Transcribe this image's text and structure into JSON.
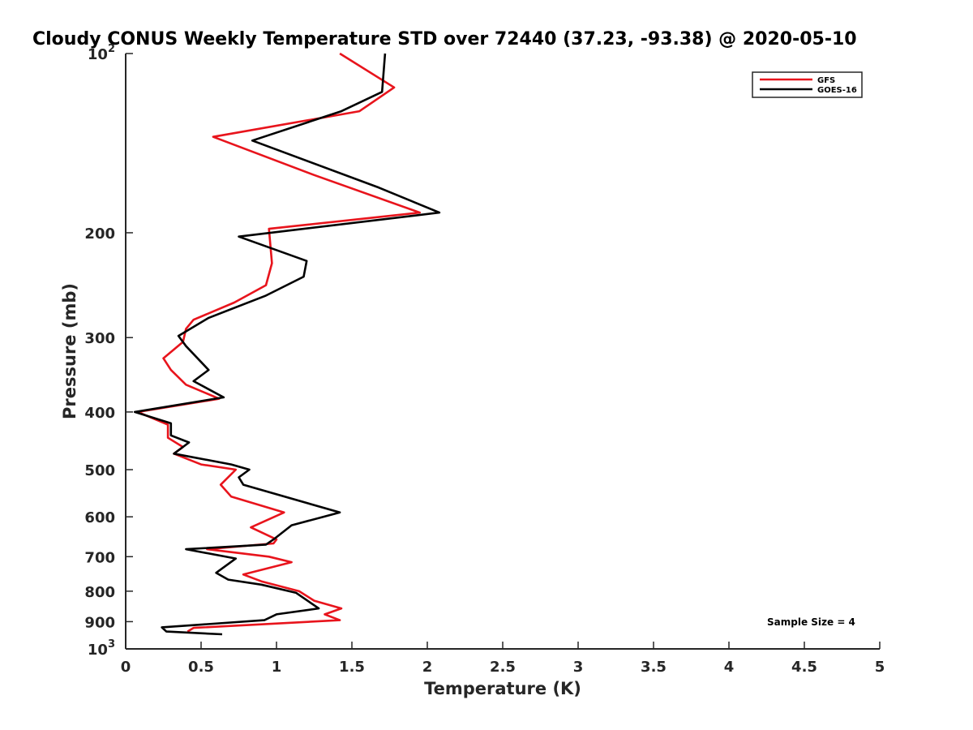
{
  "chart_data": {
    "type": "line",
    "title": "Cloudy CONUS Weekly Temperature STD over 72440 (37.23, -93.38) @ 2020-05-10",
    "xlabel": "Temperature (K)",
    "ylabel": "Pressure (mb)",
    "xlim": [
      0,
      5
    ],
    "ylim": [
      100,
      1000
    ],
    "yscale": "log",
    "y_reversed": true,
    "x_ticks": [
      "0",
      "0.5",
      "1",
      "1.5",
      "2",
      "2.5",
      "3",
      "3.5",
      "4",
      "4.5",
      "5"
    ],
    "y_ticks": [
      {
        "value": 100,
        "label": "10",
        "sup": "2"
      },
      {
        "value": 200,
        "label": "200",
        "sup": ""
      },
      {
        "value": 300,
        "label": "300",
        "sup": ""
      },
      {
        "value": 400,
        "label": "400",
        "sup": ""
      },
      {
        "value": 500,
        "label": "500",
        "sup": ""
      },
      {
        "value": 600,
        "label": "600",
        "sup": ""
      },
      {
        "value": 700,
        "label": "700",
        "sup": ""
      },
      {
        "value": 800,
        "label": "800",
        "sup": ""
      },
      {
        "value": 900,
        "label": "900",
        "sup": ""
      },
      {
        "value": 1000,
        "label": "10",
        "sup": "3"
      }
    ],
    "grid": false,
    "legend_position": "top-right",
    "series": [
      {
        "name": "GFS",
        "color": "#e8141c",
        "points": [
          [
            1.42,
            100
          ],
          [
            1.78,
            114
          ],
          [
            1.55,
            125
          ],
          [
            0.58,
            138
          ],
          [
            1.25,
            160
          ],
          [
            1.95,
            185
          ],
          [
            0.95,
            197
          ],
          [
            0.97,
            225
          ],
          [
            0.93,
            245
          ],
          [
            0.72,
            262
          ],
          [
            0.45,
            280
          ],
          [
            0.4,
            290
          ],
          [
            0.38,
            305
          ],
          [
            0.25,
            325
          ],
          [
            0.3,
            340
          ],
          [
            0.4,
            360
          ],
          [
            0.62,
            380
          ],
          [
            0.08,
            400
          ],
          [
            0.28,
            420
          ],
          [
            0.28,
            442
          ],
          [
            0.38,
            458
          ],
          [
            0.32,
            470
          ],
          [
            0.5,
            490
          ],
          [
            0.73,
            500
          ],
          [
            0.63,
            530
          ],
          [
            0.7,
            555
          ],
          [
            1.05,
            590
          ],
          [
            0.83,
            625
          ],
          [
            1.0,
            655
          ],
          [
            0.98,
            665
          ],
          [
            0.54,
            680
          ],
          [
            0.95,
            700
          ],
          [
            1.1,
            715
          ],
          [
            0.78,
            750
          ],
          [
            0.9,
            770
          ],
          [
            1.15,
            800
          ],
          [
            1.25,
            830
          ],
          [
            1.43,
            855
          ],
          [
            1.32,
            875
          ],
          [
            1.42,
            895
          ],
          [
            0.45,
            922
          ],
          [
            0.41,
            935
          ]
        ]
      },
      {
        "name": "GOES-16",
        "color": "#000000",
        "points": [
          [
            1.72,
            100
          ],
          [
            1.7,
            116
          ],
          [
            1.43,
            125
          ],
          [
            0.84,
            140
          ],
          [
            1.68,
            168
          ],
          [
            2.08,
            185
          ],
          [
            0.75,
            203
          ],
          [
            1.2,
            223
          ],
          [
            1.18,
            237
          ],
          [
            0.93,
            255
          ],
          [
            0.55,
            278
          ],
          [
            0.35,
            298
          ],
          [
            0.4,
            310
          ],
          [
            0.55,
            340
          ],
          [
            0.45,
            355
          ],
          [
            0.65,
            378
          ],
          [
            0.06,
            400
          ],
          [
            0.3,
            418
          ],
          [
            0.3,
            438
          ],
          [
            0.42,
            450
          ],
          [
            0.32,
            470
          ],
          [
            0.7,
            490
          ],
          [
            0.82,
            500
          ],
          [
            0.75,
            515
          ],
          [
            0.78,
            530
          ],
          [
            1.42,
            590
          ],
          [
            1.1,
            620
          ],
          [
            0.98,
            655
          ],
          [
            0.93,
            668
          ],
          [
            0.4,
            680
          ],
          [
            0.73,
            705
          ],
          [
            0.6,
            745
          ],
          [
            0.68,
            765
          ],
          [
            0.9,
            780
          ],
          [
            1.13,
            805
          ],
          [
            1.28,
            855
          ],
          [
            1.0,
            875
          ],
          [
            0.92,
            895
          ],
          [
            0.24,
            920
          ],
          [
            0.27,
            935
          ],
          [
            0.64,
            945
          ]
        ]
      }
    ],
    "annotations": [
      "Sample Size = 4"
    ]
  }
}
